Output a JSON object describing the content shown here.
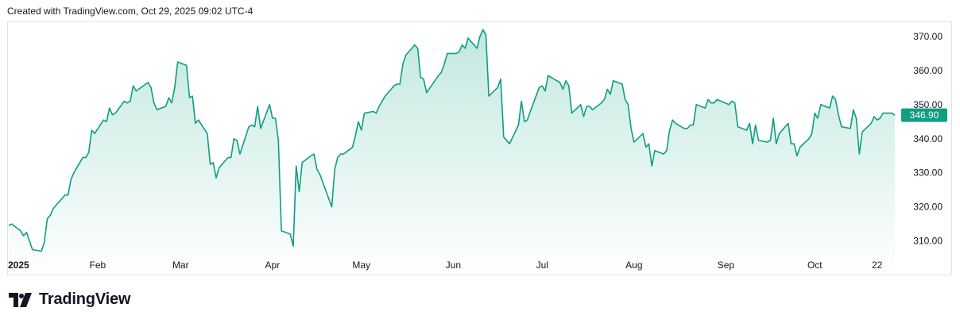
{
  "header": {
    "created_text": "Created with TradingView.com, Oct 29, 2025 09:02 UTC-4"
  },
  "footer": {
    "brand": "TradingView"
  },
  "colors": {
    "line": "#0f9d84",
    "fill_top": "#c2e8df",
    "fill_bottom": "#ffffff",
    "tag": "#0f9d84"
  },
  "chart_data": {
    "type": "area",
    "y_ticks": [
      "370.00",
      "360.00",
      "350.00",
      "340.00",
      "330.00",
      "320.00",
      "310.00"
    ],
    "y_tick_values": [
      370,
      360,
      350,
      340,
      330,
      320,
      310
    ],
    "ylim": [
      305.5,
      373.7
    ],
    "x_ticks": [
      {
        "label": "2025",
        "date": "2025-01-02",
        "bold": true
      },
      {
        "label": "Feb",
        "date": "2025-02-01"
      },
      {
        "label": "Mar",
        "date": "2025-03-01"
      },
      {
        "label": "Apr",
        "date": "2025-04-01"
      },
      {
        "label": "May",
        "date": "2025-05-01"
      },
      {
        "label": "Jun",
        "date": "2025-06-01"
      },
      {
        "label": "Jul",
        "date": "2025-07-01"
      },
      {
        "label": "Aug",
        "date": "2025-08-01"
      },
      {
        "label": "Sep",
        "date": "2025-09-01"
      },
      {
        "label": "Oct",
        "date": "2025-10-01"
      },
      {
        "label": "22",
        "date": "2025-10-22"
      }
    ],
    "last_price": "346.90",
    "x": [
      "2025-01-02",
      "2025-01-03",
      "2025-01-06",
      "2025-01-07",
      "2025-01-08",
      "2025-01-10",
      "2025-01-13",
      "2025-01-14",
      "2025-01-15",
      "2025-01-16",
      "2025-01-17",
      "2025-01-21",
      "2025-01-22",
      "2025-01-23",
      "2025-01-24",
      "2025-01-27",
      "2025-01-28",
      "2025-01-29",
      "2025-01-30",
      "2025-01-31",
      "2025-02-03",
      "2025-02-04",
      "2025-02-05",
      "2025-02-06",
      "2025-02-07",
      "2025-02-10",
      "2025-02-11",
      "2025-02-12",
      "2025-02-13",
      "2025-02-14",
      "2025-02-18",
      "2025-02-19",
      "2025-02-20",
      "2025-02-21",
      "2025-02-24",
      "2025-02-25",
      "2025-02-26",
      "2025-02-27",
      "2025-02-28",
      "2025-03-03",
      "2025-03-04",
      "2025-03-05",
      "2025-03-06",
      "2025-03-07",
      "2025-03-10",
      "2025-03-11",
      "2025-03-12",
      "2025-03-13",
      "2025-03-14",
      "2025-03-17",
      "2025-03-18",
      "2025-03-19",
      "2025-03-20",
      "2025-03-21",
      "2025-03-24",
      "2025-03-25",
      "2025-03-26",
      "2025-03-27",
      "2025-03-28",
      "2025-03-31",
      "2025-04-01",
      "2025-04-02",
      "2025-04-03",
      "2025-04-04",
      "2025-04-07",
      "2025-04-08",
      "2025-04-09",
      "2025-04-10",
      "2025-04-11",
      "2025-04-14",
      "2025-04-15",
      "2025-04-16",
      "2025-04-17",
      "2025-04-21",
      "2025-04-22",
      "2025-04-23",
      "2025-04-24",
      "2025-04-25",
      "2025-04-28",
      "2025-04-29",
      "2025-04-30",
      "2025-05-01",
      "2025-05-02",
      "2025-05-05",
      "2025-05-06",
      "2025-05-07",
      "2025-05-08",
      "2025-05-09",
      "2025-05-12",
      "2025-05-13",
      "2025-05-14",
      "2025-05-15",
      "2025-05-16",
      "2025-05-19",
      "2025-05-20",
      "2025-05-21",
      "2025-05-22",
      "2025-05-23",
      "2025-05-27",
      "2025-05-28",
      "2025-05-29",
      "2025-05-30",
      "2025-06-02",
      "2025-06-03",
      "2025-06-04",
      "2025-06-05",
      "2025-06-06",
      "2025-06-09",
      "2025-06-10",
      "2025-06-11",
      "2025-06-12",
      "2025-06-13",
      "2025-06-16",
      "2025-06-17",
      "2025-06-18",
      "2025-06-20",
      "2025-06-23",
      "2025-06-24",
      "2025-06-25",
      "2025-06-26",
      "2025-06-27",
      "2025-06-30",
      "2025-07-01",
      "2025-07-02",
      "2025-07-03",
      "2025-07-07",
      "2025-07-08",
      "2025-07-09",
      "2025-07-10",
      "2025-07-11",
      "2025-07-14",
      "2025-07-15",
      "2025-07-16",
      "2025-07-17",
      "2025-07-18",
      "2025-07-21",
      "2025-07-22",
      "2025-07-23",
      "2025-07-24",
      "2025-07-25",
      "2025-07-28",
      "2025-07-29",
      "2025-07-30",
      "2025-07-31",
      "2025-08-01",
      "2025-08-04",
      "2025-08-05",
      "2025-08-06",
      "2025-08-07",
      "2025-08-08",
      "2025-08-11",
      "2025-08-12",
      "2025-08-13",
      "2025-08-14",
      "2025-08-15",
      "2025-08-18",
      "2025-08-19",
      "2025-08-20",
      "2025-08-21",
      "2025-08-22",
      "2025-08-25",
      "2025-08-26",
      "2025-08-27",
      "2025-08-28",
      "2025-08-29",
      "2025-09-02",
      "2025-09-03",
      "2025-09-04",
      "2025-09-05",
      "2025-09-08",
      "2025-09-09",
      "2025-09-10",
      "2025-09-11",
      "2025-09-12",
      "2025-09-15",
      "2025-09-16",
      "2025-09-17",
      "2025-09-18",
      "2025-09-19",
      "2025-09-22",
      "2025-09-23",
      "2025-09-24",
      "2025-09-25",
      "2025-09-26",
      "2025-09-29",
      "2025-09-30",
      "2025-10-01",
      "2025-10-02",
      "2025-10-03",
      "2025-10-06",
      "2025-10-07",
      "2025-10-08",
      "2025-10-09",
      "2025-10-10",
      "2025-10-13",
      "2025-10-14",
      "2025-10-15",
      "2025-10-16",
      "2025-10-17",
      "2025-10-20",
      "2025-10-21",
      "2025-10-22",
      "2025-10-23",
      "2025-10-24",
      "2025-10-27",
      "2025-10-28"
    ],
    "series": [
      {
        "values": [
          314.5,
          315.0,
          313.0,
          311.5,
          312.5,
          307.5,
          307.0,
          309.5,
          316.5,
          317.5,
          319.5,
          323.5,
          323.5,
          328.0,
          330.0,
          334.5,
          334.5,
          336.0,
          342.5,
          341.5,
          345.5,
          345.0,
          349.0,
          347.0,
          347.5,
          351.0,
          350.5,
          351.0,
          355.5,
          354.0,
          356.5,
          355.0,
          350.5,
          348.5,
          349.5,
          352.0,
          350.5,
          355.0,
          362.5,
          361.5,
          352.0,
          352.5,
          344.5,
          345.5,
          341.5,
          332.5,
          333.0,
          328.5,
          331.5,
          334.5,
          334.5,
          340.0,
          339.5,
          335.5,
          343.5,
          344.0,
          343.5,
          349.5,
          343.0,
          350.0,
          346.0,
          346.0,
          339.5,
          313.0,
          312.0,
          308.5,
          332.0,
          324.5,
          333.0,
          335.0,
          335.5,
          331.0,
          329.5,
          320.0,
          331.0,
          334.5,
          335.5,
          335.5,
          337.5,
          341.0,
          345.0,
          342.5,
          347.5,
          348.0,
          347.5,
          349.5,
          351.0,
          352.5,
          355.5,
          356.0,
          356.0,
          362.0,
          364.5,
          367.5,
          366.5,
          358.0,
          357.5,
          353.5,
          358.5,
          359.5,
          362.0,
          365.0,
          365.0,
          365.5,
          367.5,
          366.5,
          369.5,
          366.5,
          370.0,
          372.0,
          370.5,
          352.5,
          355.0,
          357.5,
          340.5,
          338.5,
          344.0,
          351.0,
          345.0,
          345.5,
          348.0,
          355.0,
          355.5,
          354.0,
          358.5,
          356.5,
          354.5,
          357.0,
          355.5,
          347.5,
          350.0,
          346.5,
          349.5,
          349.5,
          348.5,
          350.5,
          351.5,
          354.5,
          353.0,
          357.0,
          356.0,
          351.5,
          350.0,
          343.0,
          339.0,
          341.5,
          337.5,
          338.5,
          332.0,
          336.5,
          335.5,
          336.5,
          342.5,
          345.5,
          344.5,
          343.0,
          343.0,
          344.0,
          344.0,
          350.0,
          349.0,
          351.5,
          350.5,
          350.5,
          351.5,
          350.0,
          351.0,
          350.5,
          343.5,
          342.5,
          344.5,
          338.5,
          344.0,
          339.5,
          339.0,
          339.5,
          346.0,
          338.5,
          341.5,
          344.5,
          338.5,
          338.5,
          335.0,
          337.5,
          340.0,
          341.5,
          347.5,
          346.0,
          350.0,
          349.0,
          352.5,
          351.5,
          347.0,
          343.5,
          343.0,
          348.5,
          346.0,
          335.5,
          342.0,
          344.5,
          346.5,
          345.5,
          346.0,
          347.5,
          347.5,
          346.9
        ]
      }
    ]
  }
}
